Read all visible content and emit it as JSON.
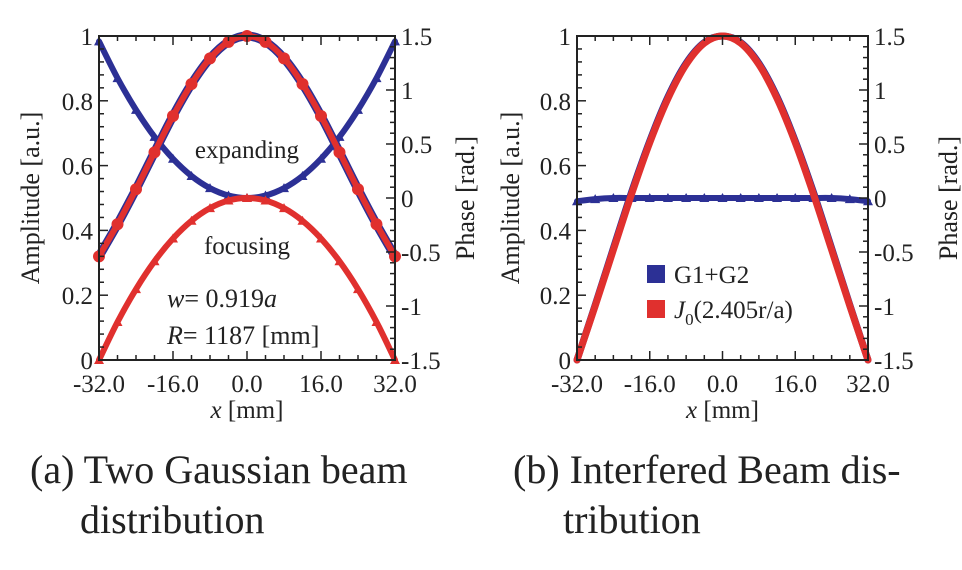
{
  "colors": {
    "blue": "#2c3095",
    "red": "#e0302e"
  },
  "chart_data": [
    {
      "type": "line",
      "caption_line1": "(a) Two Gaussian beam",
      "caption_line2": "distribution",
      "xlabel_var": "x",
      "xlabel_unit": " [mm]",
      "ylabel": "Amplitude [a.u.]",
      "y2label": "Phase [rad.]",
      "xlim": [
        -32,
        32
      ],
      "ylim": [
        0,
        1
      ],
      "y2lim": [
        -1.5,
        1.5
      ],
      "xticks": [
        "-32.0",
        "-16.0",
        "0.0",
        "16.0",
        "32.0"
      ],
      "yticks": [
        "0",
        "0.2",
        "0.4",
        "0.6",
        "0.8",
        "1"
      ],
      "y2ticks": [
        "-1.5",
        "-1",
        "-0.5",
        "0",
        "0.5",
        "1",
        "1.5"
      ],
      "annotations": {
        "expanding": "expanding",
        "focusing": "focusing",
        "w_var": "w",
        "w_eq": "= 0.919",
        "w_a": "a",
        "R_var": "R",
        "R_eq": "= 1187 [mm]"
      },
      "x": [
        -32,
        -28,
        -24,
        -20,
        -16,
        -12,
        -8,
        -4,
        0,
        4,
        8,
        12,
        16,
        20,
        24,
        28,
        32
      ],
      "series": [
        {
          "name": "amplitude (both beams)",
          "axis": "left",
          "color": "red",
          "marker": "circle",
          "values": [
            0.32,
            0.419,
            0.527,
            0.641,
            0.753,
            0.852,
            0.931,
            0.982,
            1.0,
            0.982,
            0.931,
            0.852,
            0.753,
            0.641,
            0.527,
            0.419,
            0.32
          ]
        },
        {
          "name": "expanding phase",
          "axis": "right",
          "color": "blue",
          "marker": "triangle",
          "values": [
            1.45,
            1.11,
            0.816,
            0.566,
            0.363,
            0.204,
            0.091,
            0.023,
            0,
            0.023,
            0.091,
            0.204,
            0.363,
            0.566,
            0.816,
            1.11,
            1.45
          ]
        },
        {
          "name": "focusing phase",
          "axis": "right",
          "color": "red",
          "marker": "triangle",
          "values": [
            -1.5,
            -1.148,
            -0.844,
            -0.586,
            -0.375,
            -0.211,
            -0.094,
            -0.023,
            0,
            -0.023,
            -0.094,
            -0.211,
            -0.375,
            -0.586,
            -0.844,
            -1.148,
            -1.5
          ]
        }
      ]
    },
    {
      "type": "line",
      "caption_line1": "(b) Interfered Beam dis-",
      "caption_line2": "tribution",
      "xlabel_var": "x",
      "xlabel_unit": " [mm]",
      "ylabel": "Amplitude [a.u.]",
      "y2label": "Phase [rad.]",
      "xlim": [
        -32,
        32
      ],
      "ylim": [
        0,
        1
      ],
      "y2lim": [
        -1.5,
        1.5
      ],
      "xticks": [
        "-32.0",
        "-16.0",
        "0.0",
        "16.0",
        "32.0"
      ],
      "yticks": [
        "0",
        "0.2",
        "0.4",
        "0.6",
        "0.8",
        "1"
      ],
      "y2ticks": [
        "-1.5",
        "-1",
        "-0.5",
        "0",
        "0.5",
        "1",
        "1.5"
      ],
      "legend": {
        "placement": "center-bottom",
        "g_label": "G1+G2",
        "j_main": "J",
        "j_sub": "0",
        "j_rest": "(2.405r/a)"
      },
      "x": [
        -32,
        -28,
        -24,
        -20,
        -16,
        -12,
        -8,
        -4,
        0,
        4,
        8,
        12,
        16,
        20,
        24,
        28,
        32
      ],
      "series": [
        {
          "name": "G1+G2 amplitude",
          "axis": "left",
          "color": "blue",
          "marker": "none",
          "values": [
            0.0,
            0.17,
            0.345,
            0.518,
            0.676,
            0.812,
            0.916,
            0.98,
            1.0,
            0.98,
            0.916,
            0.812,
            0.676,
            0.518,
            0.345,
            0.17,
            0.0
          ]
        },
        {
          "name": "J0(2.405r/a)",
          "axis": "left",
          "color": "red",
          "marker": "none",
          "values": [
            0.0,
            0.167,
            0.34,
            0.512,
            0.671,
            0.807,
            0.912,
            0.978,
            1.0,
            0.978,
            0.912,
            0.807,
            0.671,
            0.512,
            0.34,
            0.167,
            0.0
          ]
        },
        {
          "name": "G1+G2 phase",
          "axis": "right",
          "color": "blue",
          "marker": "triangle",
          "values": [
            -0.03,
            -0.01,
            0,
            0,
            0,
            0,
            0,
            0,
            0,
            0,
            0,
            0,
            0,
            0,
            0,
            -0.01,
            -0.03
          ]
        }
      ]
    }
  ]
}
